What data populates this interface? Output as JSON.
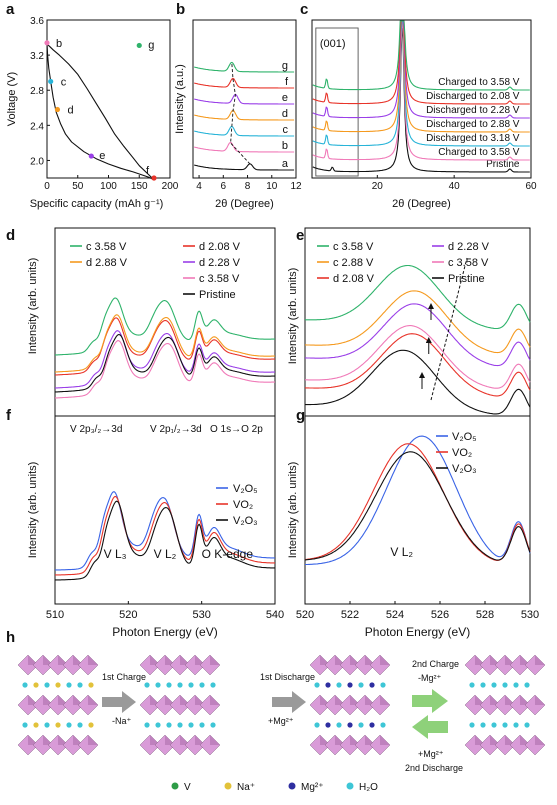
{
  "figure": {
    "colors": {
      "pristine": "#111111",
      "red": "#e8342a",
      "orange": "#f59a1f",
      "purple": "#9a3fe8",
      "pink": "#f07ab8",
      "green": "#2fb36b",
      "cyan": "#28b4d8",
      "blue": "#3a64e6"
    },
    "chart_data": [
      {
        "panel": "a",
        "type": "line",
        "panel_label": "a",
        "xlabel": "Specific capacity (mAh g⁻¹)",
        "ylabel": "Voltage (V)",
        "xlim": [
          0,
          200
        ],
        "ylim": [
          1.8,
          3.6
        ],
        "xticks": [
          "0",
          "50",
          "100",
          "150",
          "200"
        ],
        "yticks": [
          "2.0",
          "2.4",
          "2.8",
          "3.2",
          "3.6"
        ],
        "series": [
          {
            "segment": "charge",
            "x": [
              0,
              1,
              3,
              6,
              10,
              15,
              22,
              30,
              40,
              60,
              80,
              100,
              120,
              140,
              165,
              174
            ],
            "y": [
              3.34,
              3.2,
              3.05,
              2.9,
              2.72,
              2.55,
              2.42,
              2.3,
              2.21,
              2.1,
              2.02,
              1.96,
              1.91,
              1.87,
              1.81,
              1.78
            ]
          },
          {
            "segment": "discharge",
            "x": [
              174,
              165,
              150,
              140,
              125,
              110,
              95,
              80,
              65,
              50,
              35,
              20,
              10,
              4,
              1,
              0
            ],
            "y": [
              1.78,
              1.84,
              1.94,
              2.03,
              2.16,
              2.3,
              2.48,
              2.65,
              2.82,
              2.98,
              3.1,
              3.2,
              3.26,
              3.3,
              3.32,
              3.34
            ]
          }
        ],
        "points": [
          {
            "label": "b",
            "x": 0,
            "y": 3.34,
            "color": "#f07ab8"
          },
          {
            "label": "c",
            "x": 6,
            "y": 2.9,
            "color": "#28b4d8"
          },
          {
            "label": "d",
            "x": 17,
            "y": 2.58,
            "color": "#f59a1f"
          },
          {
            "label": "e",
            "x": 72,
            "y": 2.05,
            "color": "#9a3fe8"
          },
          {
            "label": "f",
            "x": 174,
            "y": 1.8,
            "color": "#e8342a"
          },
          {
            "label": "g",
            "x": 150,
            "y": 3.31,
            "color": "#2fb36b"
          }
        ]
      },
      {
        "panel": "b",
        "type": "line",
        "panel_label": "b",
        "xlabel": "2θ (Degree)",
        "ylabel": "Intensity (a.u.)",
        "xlim": [
          3.5,
          12
        ],
        "xticks": [
          "4",
          "6",
          "8",
          "10",
          "12"
        ],
        "series": [
          {
            "name": "a",
            "color": "#111111",
            "offset": 0
          },
          {
            "name": "b",
            "color": "#f07ab8",
            "offset": 1
          },
          {
            "name": "c",
            "color": "#28b4d8",
            "offset": 2
          },
          {
            "name": "d",
            "color": "#f59a1f",
            "offset": 3
          },
          {
            "name": "e",
            "color": "#9a3fe8",
            "offset": 4
          },
          {
            "name": "f",
            "color": "#e8342a",
            "offset": 5
          },
          {
            "name": "g",
            "color": "#2fb36b",
            "offset": 6
          }
        ],
        "peak_positions": [
          8.2,
          6.6,
          6.7,
          6.8,
          7.0,
          6.8,
          6.7
        ]
      },
      {
        "panel": "c",
        "type": "line",
        "panel_label": "c",
        "xlabel": "2θ (Degree)",
        "xlim": [
          3,
          60
        ],
        "xticks": [
          "20",
          "40",
          "60"
        ],
        "annotation": "(001)",
        "series": [
          {
            "name": "Pristine",
            "color": "#111111"
          },
          {
            "name": "Charged to 3.58 V",
            "color": "#f07ab8"
          },
          {
            "name": "Discharged to 3.18 V",
            "color": "#28b4d8"
          },
          {
            "name": "Discharged to 2.88 V",
            "color": "#f59a1f"
          },
          {
            "name": "Discharged to 2.28 V",
            "color": "#9a3fe8"
          },
          {
            "name": "Discharged to 2.08 V",
            "color": "#e8342a"
          },
          {
            "name": "Charged to 3.58 V",
            "color": "#2fb36b"
          }
        ],
        "main_peak_2theta": 26.5
      },
      {
        "panel": "d",
        "type": "line",
        "panel_label": "d",
        "ylabel": "Intensity (arb. units)",
        "legend": [
          {
            "name": "c 3.58 V",
            "color": "#2fb36b"
          },
          {
            "name": "d 2.08 V",
            "color": "#e8342a"
          },
          {
            "name": "d 2.88 V",
            "color": "#f59a1f"
          },
          {
            "name": "d 2.28 V",
            "color": "#9a3fe8"
          },
          {
            "name": "c 3.58 V",
            "color": "#f07ab8"
          },
          {
            "name": "Pristine",
            "color": "#111111"
          }
        ],
        "xlim": [
          510,
          540
        ]
      },
      {
        "panel": "e",
        "type": "line",
        "panel_label": "e",
        "ylabel": "Intensity (arb. units)",
        "legend": [
          {
            "name": "c 3.58 V",
            "color": "#2fb36b"
          },
          {
            "name": "d 2.28 V",
            "color": "#9a3fe8"
          },
          {
            "name": "c 2.88 V",
            "color": "#f59a1f"
          },
          {
            "name": "c 3.58 V",
            "color": "#f07ab8"
          },
          {
            "name": "d 2.08 V",
            "color": "#e8342a"
          },
          {
            "name": "Pristine",
            "color": "#111111"
          }
        ],
        "xlim": [
          520,
          530
        ]
      },
      {
        "panel": "f",
        "type": "line",
        "panel_label": "f",
        "xlabel": "Photon Energy (eV)",
        "ylabel": "Intensity (arb. units)",
        "xlim": [
          510,
          540
        ],
        "xticks": [
          "510",
          "520",
          "530",
          "540"
        ],
        "legend": [
          {
            "name": "V₂O₅",
            "color": "#3a64e6"
          },
          {
            "name": "VO₂",
            "color": "#e8342a"
          },
          {
            "name": "V₂O₃",
            "color": "#111111"
          }
        ],
        "edge_labels": {
          "v2p32": "V 2p₃/₂→3d",
          "v2p12": "V 2p₁/₂→3d",
          "o1s": "O 1s→O 2p",
          "vl3": "V L₃",
          "vl2": "V L₂",
          "ok": "O K-edge"
        },
        "peaks_eV": [
          518.2,
          525.2,
          529.6,
          532.0
        ]
      },
      {
        "panel": "g",
        "type": "line",
        "panel_label": "g",
        "xlabel": "Photon Energy (eV)",
        "ylabel": "Intensity (arb. units)",
        "xlim": [
          520,
          530
        ],
        "xticks": [
          "520",
          "522",
          "524",
          "526",
          "528",
          "530"
        ],
        "legend": [
          {
            "name": "V₂O₅",
            "color": "#3a64e6"
          },
          {
            "name": "VO₂",
            "color": "#e8342a"
          },
          {
            "name": "V₂O₃",
            "color": "#111111"
          }
        ],
        "annotation": "V L₂"
      }
    ],
    "schematic": {
      "panel_label": "h",
      "steps": [
        {
          "label": "1st Charge",
          "sublabel": "-Na⁺"
        },
        {
          "label": "1st Discharge",
          "sublabel": "+Mg²⁺"
        },
        {
          "label": "2nd Charge",
          "sublabel": "-Mg²⁺"
        },
        {
          "label": "2nd Discharge",
          "sublabel": "+Mg²⁺"
        }
      ],
      "legend": [
        {
          "label": "V",
          "color": "#2e9c47"
        },
        {
          "label": "Na⁺",
          "color": "#e2c23a"
        },
        {
          "label": "Mg²⁺",
          "color": "#2e2ea0"
        },
        {
          "label": "H₂O",
          "color": "#3ec6d6"
        }
      ]
    }
  }
}
